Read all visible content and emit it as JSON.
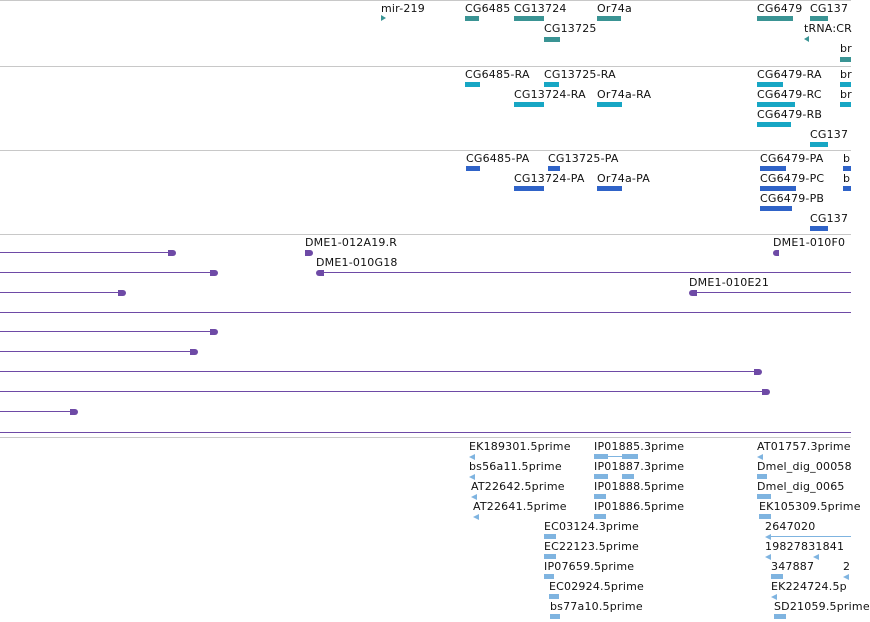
{
  "colors": {
    "gene": "#3a9494",
    "transcript": "#17a6c4",
    "protein": "#2f63c8",
    "bac": "#6e4aa6",
    "est": "#7fb4e0",
    "divider": "#c8c8c8"
  },
  "genes": {
    "mir219": "mir-219",
    "cg6485": "CG6485",
    "cg13724": "CG13724",
    "or74a": "Or74a",
    "cg6479": "CG6479",
    "cg137": "CG137",
    "cg13725": "CG13725",
    "trna": "tRNA:CR",
    "br": "br"
  },
  "transcripts": {
    "cg6485_ra": "CG6485-RA",
    "cg13725_ra": "CG13725-RA",
    "cg6479_ra": "CG6479-RA",
    "br1": "br",
    "cg13724_ra": "CG13724-RA",
    "or74a_ra": "Or74a-RA",
    "cg6479_rc": "CG6479-RC",
    "br2": "br",
    "cg6479_rb": "CG6479-RB",
    "cg137": "CG137"
  },
  "proteins": {
    "cg6485_pa": "CG6485-PA",
    "cg13725_pa": "CG13725-PA",
    "cg6479_pa": "CG6479-PA",
    "b1": "b",
    "cg13724_pa": "CG13724-PA",
    "or74a_pa": "Or74a-PA",
    "cg6479_pc": "CG6479-PC",
    "b2": "b",
    "cg6479_pb": "CG6479-PB",
    "cg137": "CG137"
  },
  "clones": {
    "c1": "DME1-012A19.R",
    "c2": "DME1-010F0",
    "c3": "DME1-010G18",
    "c4": "DME1-010E21"
  },
  "ests": {
    "e1": "EK189301.5prime",
    "e2": "IP01885.3prime",
    "e3": "AT01757.3prime",
    "e4": "bs56a11.5prime",
    "e5": "IP01887.3prime",
    "e6": "Dmel_dig_00058",
    "e7": "AT22642.5prime",
    "e8": "IP01888.5prime",
    "e9": "Dmel_dig_0065",
    "e10": "AT22641.5prime",
    "e11": "IP01886.5prime",
    "e12": "EK105309.5prime",
    "e13": "EC03124.3prime",
    "e14": "2647020",
    "e15": "EC22123.5prime",
    "e16": "19827831841",
    "e17": "IP07659.5prime",
    "e18": "347887",
    "e19": "2",
    "e20": "EC02924.5prime",
    "e21": "EK224724.5p",
    "e22": "bs77a10.5prime",
    "e23": "SD21059.5prime"
  }
}
